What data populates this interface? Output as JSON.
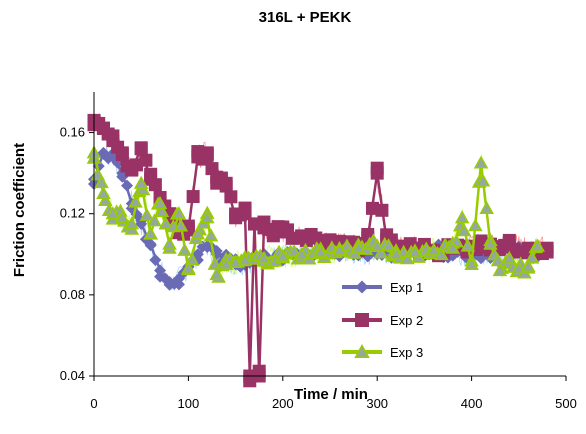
{
  "chart_data": {
    "type": "line",
    "title": "316L + PEKK",
    "xlabel": "Time / min",
    "ylabel": "Friction coefficient",
    "xlim": [
      0,
      500
    ],
    "ylim": [
      0.04,
      0.18
    ],
    "xticks": [
      0,
      100,
      200,
      300,
      400,
      500
    ],
    "yticks": [
      0.04,
      0.08,
      0.12,
      0.16
    ],
    "ytick_labels": [
      "0.04",
      "0.08",
      "0.12",
      "0.16"
    ],
    "xtick_labels": [
      "0",
      "100",
      "200",
      "300",
      "400",
      "500"
    ],
    "grid": false,
    "legend_position": "bottom-right",
    "series": [
      {
        "name": "Exp 1",
        "color": "#6b6bb5",
        "noise_color": "#99ccff",
        "marker": "diamond",
        "x": [
          0,
          10,
          20,
          30,
          40,
          50,
          60,
          70,
          80,
          90,
          100,
          110,
          120,
          130,
          140,
          150,
          160,
          170,
          180,
          200,
          220,
          240,
          260,
          280,
          300,
          320,
          340,
          360,
          380,
          400,
          420,
          440,
          460,
          470
        ],
        "y": [
          0.137,
          0.15,
          0.148,
          0.14,
          0.125,
          0.115,
          0.105,
          0.092,
          0.085,
          0.088,
          0.094,
          0.1,
          0.104,
          0.1,
          0.097,
          0.095,
          0.096,
          0.097,
          0.098,
          0.099,
          0.1,
          0.101,
          0.102,
          0.101,
          0.1,
          0.101,
          0.102,
          0.102,
          0.101,
          0.1,
          0.101,
          0.102,
          0.101,
          0.101
        ]
      },
      {
        "name": "Exp 2",
        "color": "#993366",
        "noise_color": "#ff8080",
        "marker": "square",
        "x": [
          0,
          10,
          20,
          30,
          40,
          50,
          60,
          70,
          80,
          90,
          100,
          110,
          120,
          130,
          140,
          150,
          160,
          165,
          170,
          175,
          180,
          190,
          200,
          220,
          240,
          260,
          280,
          290,
          300,
          310,
          320,
          340,
          360,
          380,
          400,
          420,
          440,
          460,
          480
        ],
        "y": [
          0.166,
          0.162,
          0.156,
          0.15,
          0.142,
          0.152,
          0.137,
          0.128,
          0.12,
          0.113,
          0.112,
          0.148,
          0.15,
          0.138,
          0.135,
          0.118,
          0.12,
          0.04,
          0.115,
          0.04,
          0.113,
          0.112,
          0.111,
          0.109,
          0.106,
          0.105,
          0.104,
          0.108,
          0.14,
          0.107,
          0.104,
          0.103,
          0.102,
          0.103,
          0.104,
          0.105,
          0.104,
          0.103,
          0.103
        ]
      },
      {
        "name": "Exp 3",
        "color": "#99cc00",
        "marker_fill": "#92a8a0",
        "noise_color": "#ccff66",
        "marker": "triangle",
        "x": [
          0,
          10,
          20,
          30,
          40,
          50,
          60,
          70,
          80,
          90,
          100,
          110,
          120,
          130,
          140,
          150,
          160,
          180,
          200,
          220,
          240,
          260,
          280,
          300,
          320,
          340,
          360,
          380,
          390,
          400,
          410,
          420,
          430,
          440,
          450,
          460,
          470
        ],
        "y": [
          0.15,
          0.13,
          0.12,
          0.118,
          0.115,
          0.135,
          0.11,
          0.125,
          0.105,
          0.12,
          0.093,
          0.11,
          0.118,
          0.09,
          0.095,
          0.096,
          0.097,
          0.098,
          0.099,
          0.1,
          0.101,
          0.102,
          0.103,
          0.104,
          0.1,
          0.101,
          0.102,
          0.103,
          0.118,
          0.095,
          0.145,
          0.105,
          0.092,
          0.098,
          0.093,
          0.094,
          0.104
        ]
      }
    ]
  }
}
